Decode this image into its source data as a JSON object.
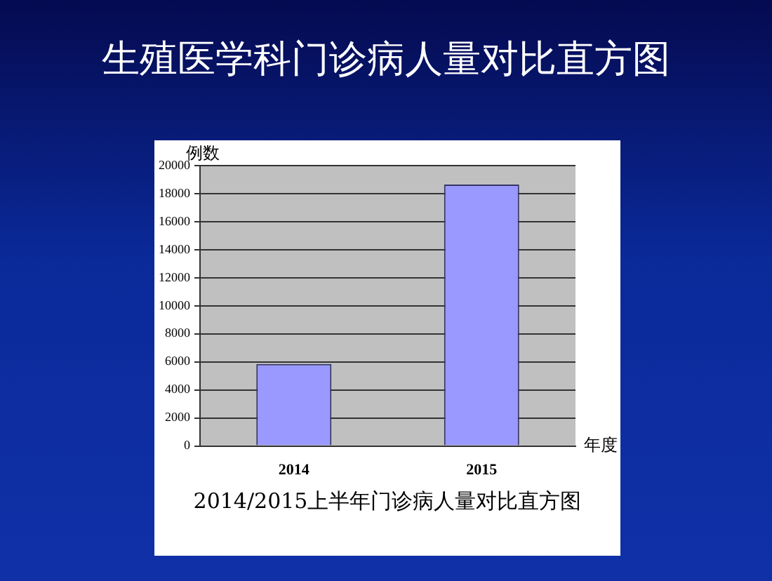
{
  "chart_data": {
    "type": "bar",
    "title": "生殖医学科门诊病人量对比直方图",
    "xlabel": "年度",
    "ylabel": "例数",
    "categories": [
      "2014",
      "2015"
    ],
    "series": [
      {
        "color": "#9999ff",
        "values": [
          5850,
          18650
        ]
      }
    ],
    "ylim": [
      0,
      20000
    ],
    "yticks": [
      0,
      2000,
      4000,
      6000,
      8000,
      10000,
      12000,
      14000,
      16000,
      18000,
      20000
    ],
    "grid": "y",
    "legend": false,
    "annotations": [
      "2014/2015上半年门诊病人量对比直方图"
    ]
  }
}
